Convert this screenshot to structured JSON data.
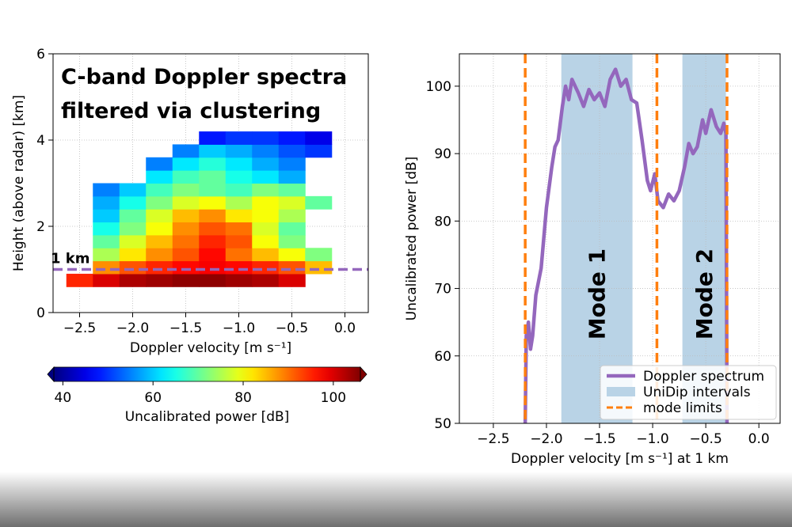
{
  "chart_data": [
    {
      "type": "heatmap",
      "title": [
        "C-band Doppler spectra",
        "filtered via clustering"
      ],
      "xlabel": "Doppler velocity [m s⁻¹]",
      "ylabel": "Height (above radar) [km]",
      "x": [
        -2.5,
        -2.25,
        -2.0,
        -1.75,
        -1.5,
        -1.25,
        -1.0,
        -0.75,
        -0.5,
        -0.25
      ],
      "y": [
        0.75,
        1.05,
        1.35,
        1.65,
        1.95,
        2.25,
        2.55,
        2.85,
        3.15,
        3.45,
        3.75,
        4.05
      ],
      "z": [
        [
          95,
          100,
          103,
          104,
          105,
          105,
          104,
          103,
          100,
          null
        ],
        [
          null,
          88,
          92,
          95,
          97,
          98,
          97,
          95,
          92,
          85
        ],
        [
          null,
          75,
          82,
          88,
          92,
          97,
          90,
          85,
          80,
          72
        ],
        [
          null,
          70,
          78,
          85,
          90,
          95,
          92,
          80,
          72,
          null
        ],
        [
          null,
          65,
          72,
          80,
          88,
          92,
          90,
          78,
          70,
          null
        ],
        [
          null,
          60,
          70,
          78,
          85,
          88,
          82,
          80,
          75,
          null
        ],
        [
          null,
          58,
          65,
          72,
          78,
          80,
          75,
          80,
          78,
          70
        ],
        [
          null,
          55,
          60,
          68,
          72,
          70,
          68,
          72,
          70,
          null
        ],
        [
          null,
          null,
          null,
          62,
          68,
          70,
          65,
          62,
          58,
          null
        ],
        [
          null,
          null,
          null,
          55,
          62,
          66,
          62,
          58,
          55,
          null
        ],
        [
          null,
          null,
          null,
          null,
          55,
          60,
          58,
          55,
          52,
          50
        ],
        [
          null,
          null,
          null,
          null,
          null,
          48,
          50,
          50,
          48,
          45
        ]
      ],
      "colormap": "jet",
      "xlim": [
        -2.75,
        0.22
      ],
      "ylim": [
        0,
        6
      ],
      "xticks": [
        {
          "value": -2.5,
          "label": "−2.5"
        },
        {
          "value": -2,
          "label": "−2.0"
        },
        {
          "value": -1.5,
          "label": "−1.5"
        },
        {
          "value": -1,
          "label": "−1.0"
        },
        {
          "value": -0.5,
          "label": "−0.5"
        },
        {
          "value": 0,
          "label": "0.0"
        }
      ],
      "yticks": [
        0,
        2,
        4,
        6
      ],
      "grid": true,
      "hline": {
        "value": 1,
        "label": "1 km",
        "color": "#9467bd"
      },
      "colorbar": {
        "label": "Uncalibrated power [dB]",
        "clim": [
          38,
          106
        ],
        "ticks": [
          40,
          60,
          80,
          100
        ]
      }
    },
    {
      "type": "line",
      "xlabel": "Doppler velocity [m s⁻¹] at 1 km",
      "ylabel": "Uncalibrated power [dB]",
      "x": [
        -2.2,
        -2.19,
        -2.17,
        -2.15,
        -2.13,
        -2.1,
        -2.05,
        -2.0,
        -1.95,
        -1.92,
        -1.89,
        -1.85,
        -1.82,
        -1.79,
        -1.76,
        -1.7,
        -1.65,
        -1.6,
        -1.55,
        -1.5,
        -1.45,
        -1.4,
        -1.35,
        -1.3,
        -1.25,
        -1.2,
        -1.15,
        -1.1,
        -1.05,
        -1.02,
        -0.98,
        -0.95,
        -0.9,
        -0.85,
        -0.8,
        -0.75,
        -0.7,
        -0.66,
        -0.62,
        -0.58,
        -0.53,
        -0.5,
        -0.45,
        -0.4,
        -0.36,
        -0.33,
        -0.31,
        -0.3
      ],
      "series": [
        {
          "name": "Doppler spectrum",
          "color": "#9467bd",
          "values": [
            50,
            63,
            65,
            61,
            63,
            69,
            73,
            82,
            88,
            91,
            92,
            97,
            100,
            98,
            101,
            99,
            97,
            99.5,
            98,
            99,
            97,
            101,
            102.5,
            100,
            101,
            98,
            97.5,
            92,
            86,
            84.5,
            87,
            83,
            82,
            84,
            83,
            84.5,
            88,
            91.5,
            90,
            91,
            95,
            93,
            96.5,
            94,
            93,
            94.5,
            93,
            50
          ]
        }
      ],
      "intervals": {
        "name": "UniDip intervals",
        "color": "#b9d3e6",
        "ranges": [
          [
            -1.86,
            -1.19
          ],
          [
            -0.72,
            -0.31
          ]
        ],
        "labels": [
          "Mode 1",
          "Mode 2"
        ]
      },
      "mode_limits": {
        "name": "mode limits",
        "color": "#ff7f0e",
        "values": [
          -2.2,
          -0.96,
          -0.3
        ]
      },
      "xlim": [
        -2.82,
        0.2
      ],
      "ylim": [
        50,
        104.8
      ],
      "xticks": [
        {
          "value": -2.5,
          "label": "−2.5"
        },
        {
          "value": -2,
          "label": "−2.0"
        },
        {
          "value": -1.5,
          "label": "−1.5"
        },
        {
          "value": -1,
          "label": "−1.0"
        },
        {
          "value": -0.5,
          "label": "−0.5"
        },
        {
          "value": 0,
          "label": "0.0"
        }
      ],
      "yticks": [
        50,
        60,
        70,
        80,
        90,
        100
      ],
      "grid": true,
      "legend": "lower right"
    }
  ]
}
